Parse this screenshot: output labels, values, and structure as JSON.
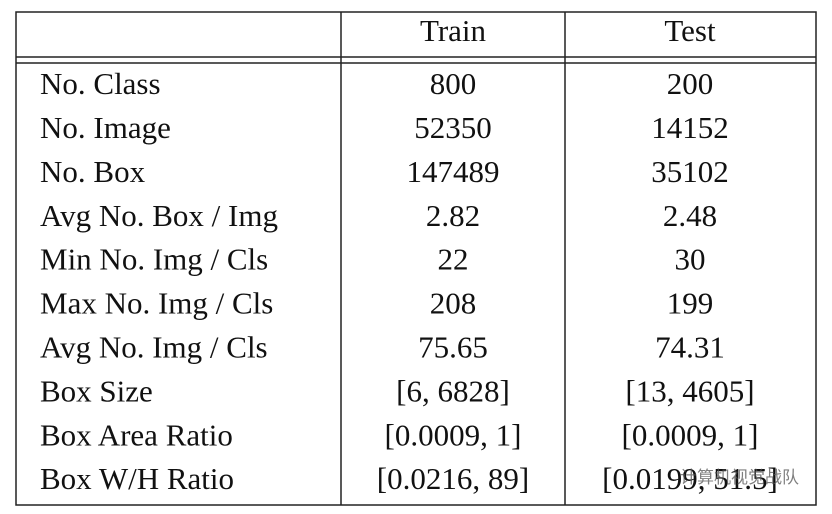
{
  "table": {
    "header": [
      "Train",
      "Test"
    ],
    "rows": [
      [
        "No. Class",
        "800",
        "200"
      ],
      [
        "No. Image",
        "52350",
        "14152"
      ],
      [
        "No. Box",
        "147489",
        "35102"
      ],
      [
        "Avg No. Box / Img",
        "2.82",
        "2.48"
      ],
      [
        "Min No. Img / Cls",
        "22",
        "30"
      ],
      [
        "Max No. Img / Cls",
        "208",
        "199"
      ],
      [
        "Avg No. Img / Cls",
        "75.65",
        "74.31"
      ],
      [
        "Box Size",
        "[6, 6828]",
        "[13, 4605]"
      ],
      [
        "Box Area Ratio",
        "[0.0009, 1]",
        "[0.0009, 1]"
      ],
      [
        "Box W/H Ratio",
        "[0.0216, 89]",
        "[0.0199, 51.5]"
      ]
    ]
  },
  "watermark": "计算机视觉战队"
}
